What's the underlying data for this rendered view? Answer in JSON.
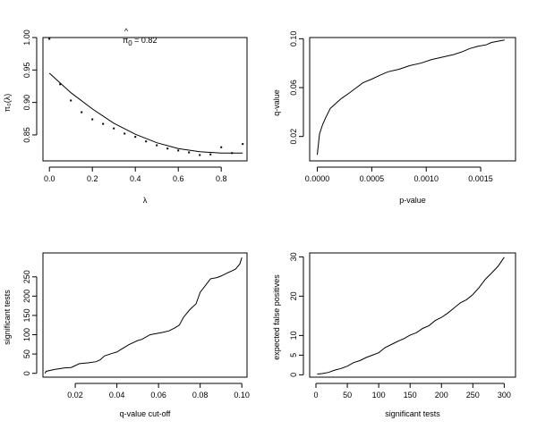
{
  "chart_data": [
    {
      "id": "pi0",
      "type": "scatter",
      "title_hat": "^",
      "title_pi": "π",
      "title_sub": "0",
      "title_rest": " = 0.82",
      "xlabel": "λ",
      "ylabel": "π₀(λ)",
      "xlim": [
        -0.03,
        0.92
      ],
      "ylim": [
        0.81,
        1.0
      ],
      "xticks": [
        0,
        0.2,
        0.4,
        0.6,
        0.8
      ],
      "xtick_labels": [
        "0.0",
        "0.2",
        "0.4",
        "0.6",
        "0.8"
      ],
      "yticks": [
        0.85,
        0.9,
        0.95,
        1.0
      ],
      "ytick_labels": [
        "0.85",
        "0.90",
        "0.95",
        "1.00"
      ],
      "points": {
        "x": [
          0,
          0.05,
          0.1,
          0.15,
          0.2,
          0.25,
          0.3,
          0.35,
          0.4,
          0.45,
          0.5,
          0.55,
          0.6,
          0.65,
          0.7,
          0.75,
          0.8,
          0.85,
          0.9
        ],
        "y": [
          0.998,
          0.928,
          0.903,
          0.885,
          0.874,
          0.867,
          0.86,
          0.852,
          0.847,
          0.84,
          0.834,
          0.829,
          0.826,
          0.823,
          0.819,
          0.82,
          0.831,
          0.822,
          0.836
        ]
      },
      "fit": {
        "x": [
          0,
          0.1,
          0.2,
          0.3,
          0.4,
          0.5,
          0.6,
          0.7,
          0.8,
          0.9
        ],
        "y": [
          0.945,
          0.915,
          0.89,
          0.868,
          0.851,
          0.838,
          0.829,
          0.824,
          0.822,
          0.822
        ]
      }
    },
    {
      "id": "qp",
      "type": "line",
      "xlabel": "p-value",
      "ylabel": "q-value",
      "xlim": [
        -7e-05,
        0.00182
      ],
      "ylim": [
        0.0,
        0.101
      ],
      "xticks": [
        0,
        0.0005,
        0.001,
        0.0015
      ],
      "xtick_labels": [
        "0.0000",
        "0.0005",
        "0.0010",
        "0.0015"
      ],
      "yticks": [
        0.02,
        0.06,
        0.1
      ],
      "ytick_labels": [
        "0.02",
        "0.06",
        "0.10"
      ],
      "series": [
        {
          "name": "q-value vs p-value",
          "x": [
            0,
            2e-05,
            5e-05,
            8e-05,
            0.00012,
            0.00017,
            0.00022,
            0.0003,
            0.00036,
            0.00042,
            0.0005,
            0.00057,
            0.00065,
            0.00075,
            0.00085,
            0.00095,
            0.00105,
            0.00115,
            0.00125,
            0.00132,
            0.0014,
            0.00148,
            0.00155,
            0.0016,
            0.00166,
            0.00172
          ],
          "y": [
            0.005,
            0.022,
            0.03,
            0.036,
            0.043,
            0.047,
            0.051,
            0.056,
            0.06,
            0.064,
            0.067,
            0.07,
            0.073,
            0.075,
            0.078,
            0.08,
            0.083,
            0.085,
            0.087,
            0.089,
            0.092,
            0.094,
            0.095,
            0.097,
            0.098,
            0.099
          ]
        }
      ]
    },
    {
      "id": "sigq",
      "type": "line",
      "xlabel": "q-value cut-off",
      "ylabel": "significant tests",
      "xlim": [
        0.0045,
        0.1025
      ],
      "ylim": [
        -10,
        312
      ],
      "xticks": [
        0.02,
        0.04,
        0.06,
        0.08,
        0.1
      ],
      "xtick_labels": [
        "0.02",
        "0.04",
        "0.06",
        "0.08",
        "0.10"
      ],
      "yticks": [
        0,
        50,
        100,
        150,
        200,
        250
      ],
      "ytick_labels": [
        "0",
        "50",
        "100",
        "150",
        "200",
        "250"
      ],
      "series": [
        {
          "name": "significant tests",
          "x": [
            0.0055,
            0.006,
            0.01,
            0.015,
            0.018,
            0.022,
            0.026,
            0.03,
            0.032,
            0.034,
            0.038,
            0.04,
            0.042,
            0.046,
            0.05,
            0.052,
            0.056,
            0.06,
            0.062,
            0.065,
            0.068,
            0.07,
            0.072,
            0.075,
            0.078,
            0.08,
            0.085,
            0.088,
            0.09,
            0.093,
            0.095,
            0.097,
            0.099,
            0.1
          ],
          "y": [
            0,
            5,
            10,
            14,
            15,
            25,
            27,
            30,
            35,
            45,
            52,
            55,
            62,
            75,
            85,
            88,
            100,
            104,
            106,
            110,
            118,
            125,
            145,
            165,
            180,
            210,
            245,
            248,
            252,
            260,
            265,
            270,
            283,
            300
          ]
        }
      ]
    },
    {
      "id": "efp",
      "type": "line",
      "xlabel": "significant tests",
      "ylabel": "expected false positives",
      "xlim": [
        -10,
        318
      ],
      "ylim": [
        -0.6,
        31
      ],
      "xticks": [
        0,
        50,
        100,
        150,
        200,
        250,
        300
      ],
      "xtick_labels": [
        "0",
        "50",
        "100",
        "150",
        "200",
        "250",
        "300"
      ],
      "yticks": [
        0,
        5,
        10,
        20,
        30
      ],
      "ytick_labels": [
        "0",
        "5",
        "10",
        "20",
        "30"
      ],
      "series": [
        {
          "name": "expected false positives",
          "x": [
            2,
            10,
            20,
            30,
            40,
            50,
            60,
            70,
            80,
            90,
            100,
            110,
            120,
            130,
            140,
            150,
            160,
            170,
            180,
            190,
            200,
            210,
            220,
            230,
            240,
            250,
            260,
            270,
            280,
            290,
            300
          ],
          "y": [
            0.2,
            0.3,
            0.6,
            1.2,
            1.6,
            2.2,
            3.1,
            3.6,
            4.4,
            5.0,
            5.6,
            6.9,
            7.7,
            8.5,
            9.2,
            10.1,
            10.7,
            11.8,
            12.5,
            13.8,
            14.6,
            15.7,
            17.0,
            18.3,
            19.1,
            20.4,
            22.2,
            24.3,
            25.9,
            27.6,
            29.9
          ]
        }
      ]
    }
  ]
}
